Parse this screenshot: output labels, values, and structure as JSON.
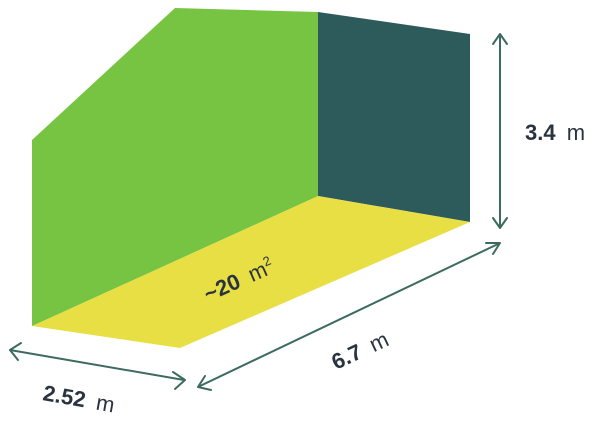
{
  "colors": {
    "wall_left": "#76c442",
    "wall_back": "#2d5a5a",
    "floor": "#e8df45",
    "dimension_line": "#3d6b5f",
    "label_text": "#2a3340",
    "background": "#ffffff"
  },
  "dimensions": {
    "height": {
      "value": "3.4",
      "unit": "m"
    },
    "length": {
      "value": "6.7",
      "unit": "m"
    },
    "width": {
      "value": "2.52",
      "unit": "m"
    }
  },
  "area": {
    "prefix": "~",
    "value": "20",
    "unit": "m",
    "exponent": "2"
  }
}
